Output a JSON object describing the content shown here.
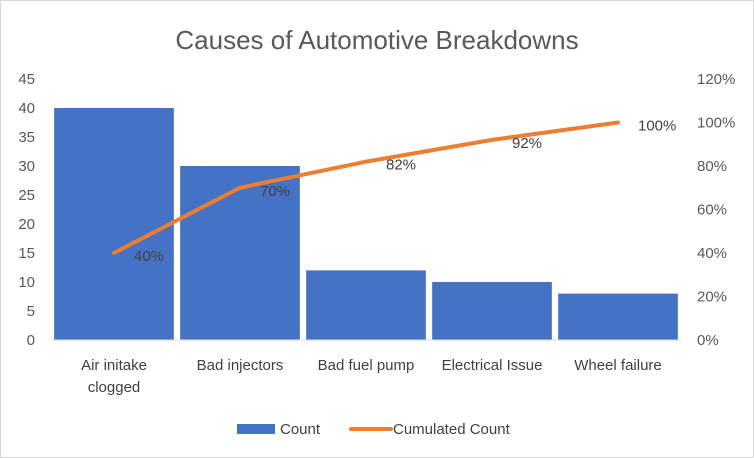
{
  "chart_data": {
    "type": "bar",
    "title": "Causes of Automotive Breakdowns",
    "categories": [
      "Air initake clogged",
      "Bad injectors",
      "Bad fuel pump",
      "Electrical Issue",
      "Wheel failure"
    ],
    "category_lines": [
      [
        "Air initake",
        "clogged"
      ],
      [
        "Bad injectors"
      ],
      [
        "Bad fuel pump"
      ],
      [
        "Electrical Issue"
      ],
      [
        "Wheel failure"
      ]
    ],
    "series": [
      {
        "name": "Count",
        "type": "bar",
        "axis": "left",
        "color": "#4472c4",
        "values": [
          40,
          30,
          12,
          10,
          8
        ]
      },
      {
        "name": "Cumulated Count",
        "type": "line",
        "axis": "right",
        "color": "#ed7d31",
        "values": [
          40,
          70,
          82,
          92,
          100
        ],
        "labels": [
          "40%",
          "70%",
          "82%",
          "92%",
          "100%"
        ]
      }
    ],
    "y_left": {
      "min": 0,
      "max": 45,
      "step": 5,
      "ticks": [
        "0",
        "5",
        "10",
        "15",
        "20",
        "25",
        "30",
        "35",
        "40",
        "45"
      ]
    },
    "y_right": {
      "min": 0,
      "max": 120,
      "step": 20,
      "ticks": [
        "0%",
        "20%",
        "40%",
        "60%",
        "80%",
        "100%",
        "120%"
      ]
    },
    "legend": {
      "position": "bottom",
      "items": [
        "Count",
        "Cumulated Count"
      ]
    },
    "grid": false
  }
}
